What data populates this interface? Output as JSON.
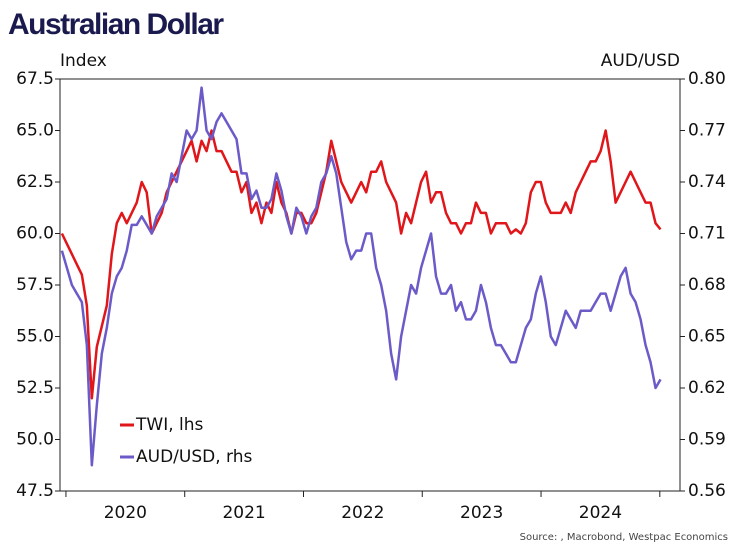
{
  "chart_data": {
    "type": "line",
    "title": "Australian Dollar",
    "y_label": "Index",
    "y2_label": "AUD/USD",
    "source": "Source: , Macrobond, Westpac Economics",
    "legend": "lower left",
    "xlim": [
      2019.95,
      2025.17
    ],
    "xticks": [
      {
        "value": 2020.5,
        "label": "2020"
      },
      {
        "value": 2021.5,
        "label": "2021"
      },
      {
        "value": 2022.5,
        "label": "2022"
      },
      {
        "value": 2023.5,
        "label": "2023"
      },
      {
        "value": 2024.5,
        "label": "2024"
      }
    ],
    "ylim": [
      47.5,
      67.5
    ],
    "yticks": [
      47.5,
      {
        "value": 50,
        "label": "50.0"
      },
      52.5,
      {
        "value": 55,
        "label": "55.0"
      },
      57.5,
      {
        "value": 60,
        "label": "60.0"
      },
      62.5,
      {
        "value": 65,
        "label": "65.0"
      },
      67.5
    ],
    "y2lim": [
      0.56,
      0.8
    ],
    "y2ticks": [
      0.56,
      0.59,
      0.62,
      0.65,
      0.68,
      0.71,
      0.74,
      0.77,
      {
        "value": 0.8,
        "label": "0.80"
      }
    ],
    "x": [
      2019.966,
      2020.008,
      2020.05,
      2020.092,
      2020.134,
      2020.176,
      2020.218,
      2020.26,
      2020.302,
      2020.344,
      2020.386,
      2020.428,
      2020.47,
      2020.512,
      2020.554,
      2020.596,
      2020.638,
      2020.68,
      2020.722,
      2020.764,
      2020.806,
      2020.848,
      2020.89,
      2020.932,
      2020.974,
      2021.016,
      2021.058,
      2021.1,
      2021.142,
      2021.184,
      2021.226,
      2021.268,
      2021.31,
      2021.352,
      2021.394,
      2021.436,
      2021.478,
      2021.52,
      2021.562,
      2021.604,
      2021.646,
      2021.688,
      2021.73,
      2021.772,
      2021.814,
      2021.856,
      2021.898,
      2021.94,
      2021.982,
      2022.024,
      2022.066,
      2022.108,
      2022.15,
      2022.192,
      2022.234,
      2022.276,
      2022.318,
      2022.36,
      2022.402,
      2022.444,
      2022.486,
      2022.528,
      2022.57,
      2022.612,
      2022.654,
      2022.696,
      2022.738,
      2022.78,
      2022.822,
      2022.864,
      2022.906,
      2022.948,
      2022.99,
      2023.032,
      2023.074,
      2023.116,
      2023.158,
      2023.2,
      2023.242,
      2023.284,
      2023.326,
      2023.368,
      2023.41,
      2023.452,
      2023.494,
      2023.536,
      2023.578,
      2023.62,
      2023.662,
      2023.704,
      2023.746,
      2023.788,
      2023.83,
      2023.872,
      2023.914,
      2023.956,
      2023.998,
      2024.04,
      2024.082,
      2024.124,
      2024.166,
      2024.208,
      2024.25,
      2024.292,
      2024.334,
      2024.376,
      2024.418,
      2024.46,
      2024.502,
      2024.544,
      2024.586,
      2024.628,
      2024.67,
      2024.712,
      2024.754,
      2024.796,
      2024.838,
      2024.88,
      2024.922,
      2024.964,
      2025.006
    ],
    "series": [
      {
        "name": "TWI, lhs",
        "color": "#e0161b",
        "values": [
          60.0,
          59.5,
          59,
          58.5,
          58,
          56.5,
          52,
          54.5,
          55.5,
          56.5,
          59,
          60.5,
          61,
          60.5,
          61,
          61.5,
          62.5,
          62,
          60,
          60.5,
          61,
          62,
          62.5,
          63,
          63.5,
          64,
          64.5,
          63.5,
          64.5,
          64,
          65,
          64,
          64,
          63.5,
          63,
          63,
          62,
          62.5,
          61,
          61.5,
          60.5,
          61.5,
          61,
          62.5,
          61.5,
          61,
          60,
          61,
          61,
          60.5,
          60.5,
          61,
          62,
          63,
          64.5,
          63.5,
          62.5,
          62,
          61.5,
          62,
          62.5,
          62,
          63,
          63,
          63.5,
          62.5,
          62,
          61.5,
          60,
          61,
          60.5,
          61.5,
          62.5,
          63,
          61.5,
          62,
          62,
          61,
          60.5,
          60.5,
          60,
          60.5,
          60.5,
          61.5,
          61,
          61,
          60,
          60.5,
          60.5,
          60.5,
          60,
          60.2,
          60,
          60.5,
          62,
          62.5,
          62.5,
          61.5,
          61,
          61,
          61,
          61.5,
          61,
          62,
          62.5,
          63,
          63.5,
          63.5,
          64,
          65,
          63.5,
          61.5,
          62,
          62.5,
          63,
          62.5,
          62,
          61.5,
          61.5,
          60.5,
          60.2
        ]
      },
      {
        "name": "AUD/USD, rhs",
        "color": "#6b5bc9",
        "axis": "y2",
        "values": [
          0.7,
          0.69,
          0.68,
          0.675,
          0.67,
          0.645,
          0.575,
          0.61,
          0.64,
          0.655,
          0.675,
          0.685,
          0.69,
          0.7,
          0.715,
          0.715,
          0.72,
          0.715,
          0.71,
          0.72,
          0.725,
          0.73,
          0.745,
          0.74,
          0.755,
          0.77,
          0.765,
          0.77,
          0.795,
          0.77,
          0.765,
          0.775,
          0.78,
          0.775,
          0.77,
          0.765,
          0.745,
          0.745,
          0.73,
          0.735,
          0.725,
          0.725,
          0.73,
          0.745,
          0.735,
          0.72,
          0.71,
          0.725,
          0.72,
          0.71,
          0.72,
          0.725,
          0.74,
          0.745,
          0.755,
          0.745,
          0.725,
          0.705,
          0.695,
          0.7,
          0.7,
          0.71,
          0.71,
          0.69,
          0.68,
          0.665,
          0.64,
          0.625,
          0.65,
          0.665,
          0.68,
          0.675,
          0.69,
          0.7,
          0.71,
          0.685,
          0.675,
          0.675,
          0.68,
          0.665,
          0.67,
          0.66,
          0.66,
          0.665,
          0.68,
          0.67,
          0.655,
          0.645,
          0.645,
          0.64,
          0.635,
          0.635,
          0.645,
          0.655,
          0.66,
          0.675,
          0.685,
          0.67,
          0.65,
          0.645,
          0.655,
          0.665,
          0.66,
          0.655,
          0.665,
          0.665,
          0.665,
          0.67,
          0.675,
          0.675,
          0.665,
          0.675,
          0.685,
          0.69,
          0.675,
          0.67,
          0.66,
          0.645,
          0.635,
          0.62,
          0.625
        ]
      }
    ]
  }
}
